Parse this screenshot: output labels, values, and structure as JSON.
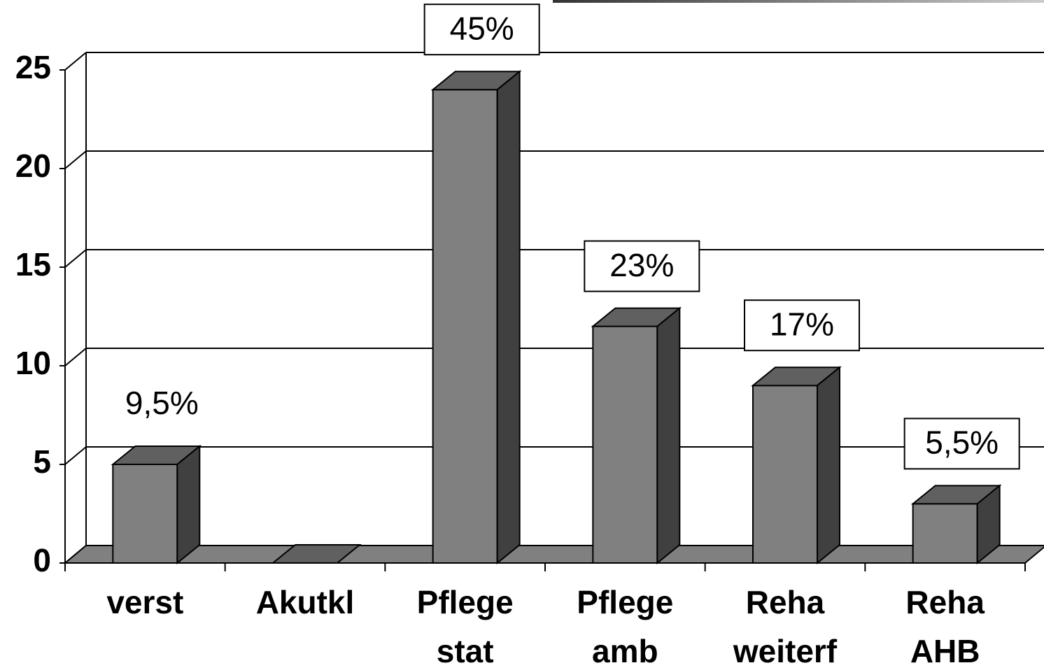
{
  "chart_data": {
    "type": "bar3d",
    "categories": [
      [
        "verst"
      ],
      [
        "Akutkl"
      ],
      [
        "Pflege",
        "stat"
      ],
      [
        "Pflege",
        "amb"
      ],
      [
        "Reha",
        "weiterf"
      ],
      [
        "Reha",
        "AHB"
      ]
    ],
    "values": [
      5,
      0,
      24,
      12,
      9,
      3
    ],
    "annotations": [
      "9,5%",
      null,
      "45%",
      "23%",
      "17%",
      "5,5%"
    ],
    "color": "#808080",
    "ylim": [
      0,
      25
    ],
    "yticks": [
      0,
      5,
      10,
      15,
      20,
      25
    ],
    "grid": true
  }
}
